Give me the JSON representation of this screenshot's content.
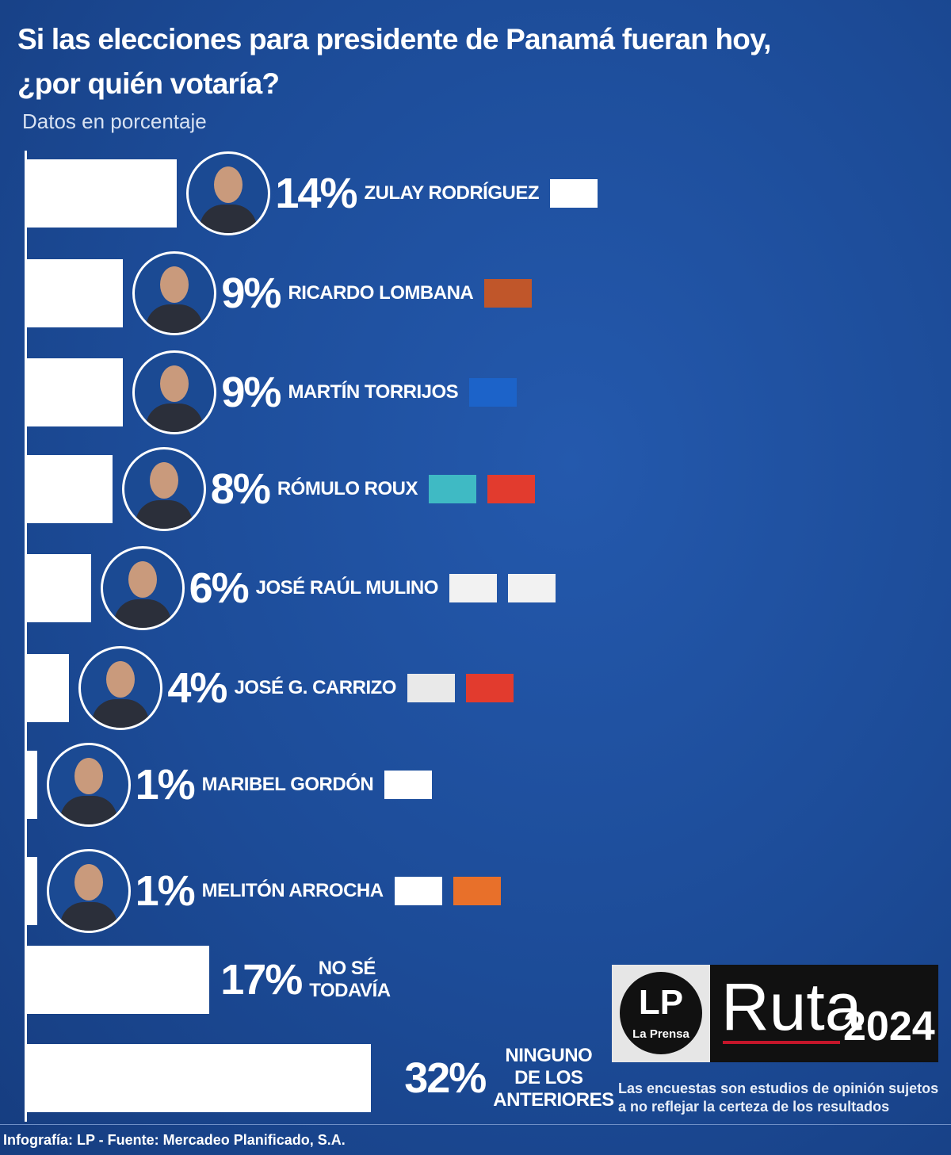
{
  "chart_data": {
    "type": "bar",
    "orientation": "horizontal",
    "title": "Si las elecciones para presidente de Panamá fueran hoy,\n¿por quién votaría?",
    "subtitle": "Datos en porcentaje",
    "categories": [
      "ZULAY RODRÍGUEZ",
      "RICARDO LOMBANA",
      "MARTÍN TORRIJOS",
      "RÓMULO ROUX",
      "JOSÉ RAÚL MULINO",
      "JOSÉ G. CARRIZO",
      "MARIBEL GORDÓN",
      "MELITÓN ARROCHA",
      "NO SÉ TODAVÍA",
      "NINGUNO DE LOS ANTERIORES"
    ],
    "values": [
      14,
      9,
      9,
      8,
      6,
      4,
      1,
      1,
      17,
      32
    ],
    "value_labels": [
      "14%",
      "9%",
      "9%",
      "8%",
      "6%",
      "4%",
      "1%",
      "1%",
      "17%",
      "32%"
    ],
    "color": "#ffffff"
  },
  "footer": "Infografía: LP - Fuente: Mercadeo Planificado, S.A.",
  "brand": {
    "logo": "LP",
    "logo_sub": "La Prensa",
    "name": "Ruta",
    "year": "2024"
  },
  "disclaimer": "Las encuestas son estudios de opinión sujetos\na no reflejar la certeza de los resultados"
}
